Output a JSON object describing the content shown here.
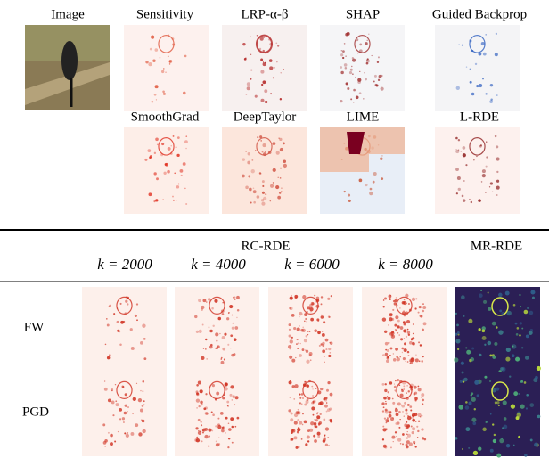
{
  "saliency_grid": {
    "image_label": "Image",
    "methods": [
      "Sensitivity",
      "LRP-α-β",
      "SHAP",
      "Guided Backprop",
      "SmoothGrad",
      "DeepTaylor",
      "LIME",
      "L-RDE"
    ]
  },
  "table": {
    "group_header": "RC-RDE",
    "k_labels": [
      "k = 2000",
      "k = 4000",
      "k = 6000",
      "k = 8000"
    ],
    "mr_header": "MR-RDE",
    "rows": [
      "FW",
      "PGD"
    ]
  }
}
